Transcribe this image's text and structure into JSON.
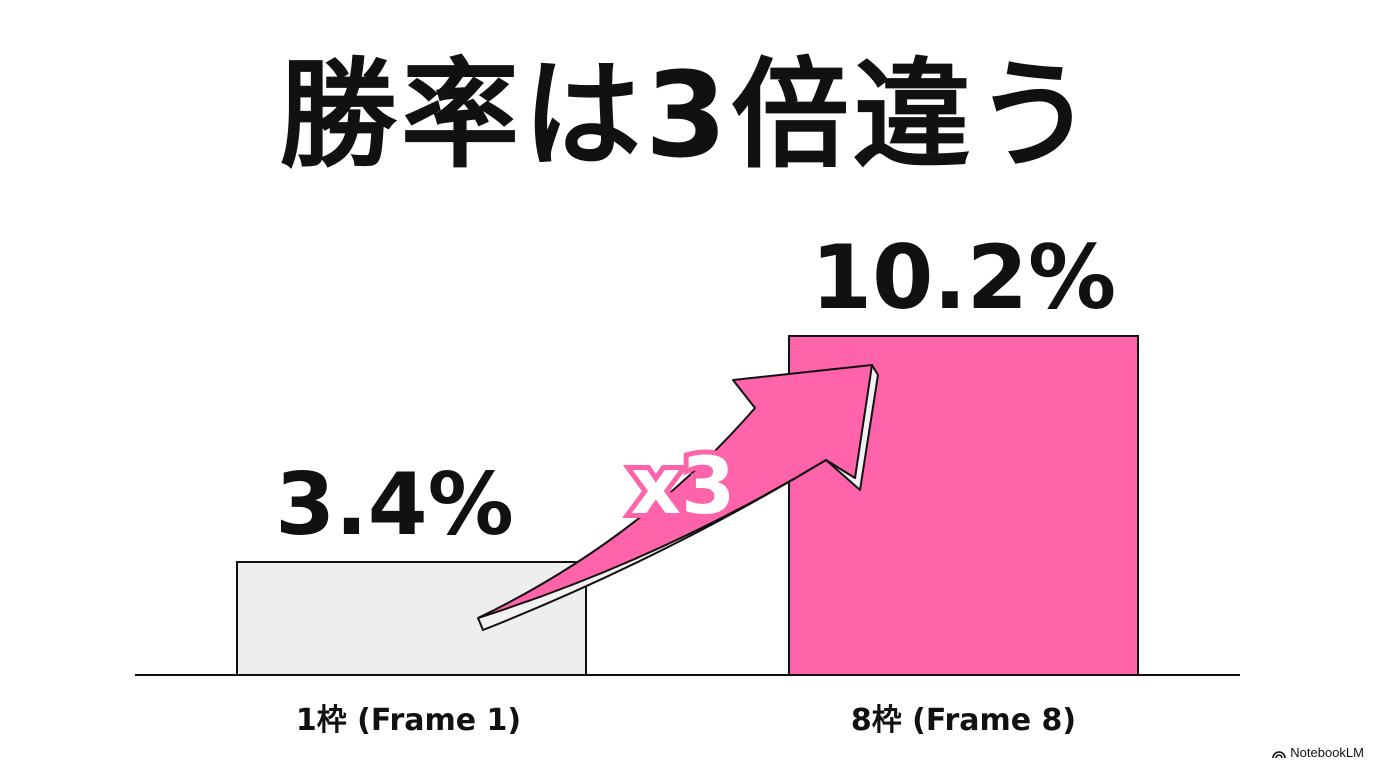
{
  "chart_data": {
    "type": "bar",
    "title": "勝率は3倍違う",
    "categories": [
      "1枠 (Frame 1)",
      "8枠 (Frame 8)"
    ],
    "values": [
      3.4,
      10.2
    ],
    "value_labels": [
      "3.4%",
      "10.2%"
    ],
    "ylim": [
      0,
      10.2
    ],
    "grid": false,
    "colors": [
      "#eeeeee",
      "#ff63a9"
    ],
    "annotation": "x3",
    "annotation_color": "#ff63a9"
  },
  "watermark": "NotebookLM"
}
